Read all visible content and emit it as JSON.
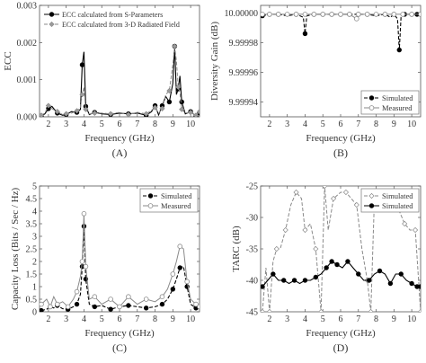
{
  "panels": [
    {
      "id": "A",
      "label": "(A)",
      "xlabel": "Frequency (GHz)",
      "ylabel": "ECC"
    },
    {
      "id": "B",
      "label": "(B)",
      "xlabel": "Frequency (GHz)",
      "ylabel": "Diversity Gain (dB)"
    },
    {
      "id": "C",
      "label": "(C)",
      "xlabel": "Frequency (GHz)",
      "ylabel": "Capacity Loss (Bits / Sec / Hz)"
    },
    {
      "id": "D",
      "label": "(D)",
      "xlabel": "Frequency (GHz)",
      "ylabel": "TARC (dB)"
    }
  ],
  "chart_data": [
    {
      "id": "A",
      "type": "line",
      "xlabel": "Frequency (GHz)",
      "ylabel": "ECC",
      "xlim": [
        1.5,
        10.5
      ],
      "ylim": [
        0,
        0.003
      ],
      "xticks": [
        2,
        3,
        4,
        5,
        6,
        7,
        8,
        9,
        10
      ],
      "yticks": [
        0,
        0.001,
        0.002,
        0.003
      ],
      "ytick_labels": [
        "0.000",
        "0.001",
        "0.002",
        "0.003"
      ],
      "legend": "top-left",
      "series": [
        {
          "name": "ECC  calculated from S-Parameters",
          "style": "solid",
          "marker": "circle-filled",
          "color": "#000000",
          "x": [
            1.6,
            1.8,
            2.0,
            2.2,
            2.5,
            2.8,
            3.0,
            3.3,
            3.6,
            3.8,
            3.9,
            4.0,
            4.1,
            4.3,
            4.6,
            5.0,
            5.5,
            6.0,
            6.5,
            7.0,
            7.5,
            7.8,
            8.0,
            8.2,
            8.4,
            8.6,
            8.8,
            9.0,
            9.1,
            9.2,
            9.3,
            9.4,
            9.5,
            9.7,
            10.0,
            10.3,
            10.5
          ],
          "y": [
            2e-05,
            8e-05,
            0.00022,
            0.00028,
            0.0001,
            4e-05,
            6e-05,
            0.00014,
            0.00012,
            0.0002,
            0.0014,
            0.00175,
            0.00028,
            6e-05,
            0.00012,
            8e-05,
            6e-05,
            0.0001,
            8e-05,
            0.0001,
            4e-05,
            0.00014,
            0.0003,
            5e-05,
            0.0003,
            0.00055,
            0.0004,
            0.0009,
            0.0019,
            0.0006,
            0.00075,
            0.0011,
            0.0004,
            8e-05,
            0.00014,
            2e-05,
            0.0001
          ]
        },
        {
          "name": "ECC  calculated from 3-D Radiated Field",
          "style": "dashed",
          "marker": "diamond-gray",
          "color": "#8a8a8a",
          "x": [
            1.6,
            1.8,
            2.0,
            2.2,
            2.5,
            2.8,
            3.0,
            3.3,
            3.6,
            3.8,
            3.9,
            4.0,
            4.1,
            4.3,
            4.6,
            5.0,
            5.5,
            6.0,
            6.5,
            7.0,
            7.5,
            7.8,
            8.0,
            8.2,
            8.4,
            8.6,
            8.8,
            9.0,
            9.1,
            9.2,
            9.3,
            9.4,
            9.5,
            9.7,
            10.0,
            10.3,
            10.5
          ],
          "y": [
            4e-05,
            0.0001,
            0.0003,
            0.00022,
            0.00014,
            6e-05,
            8e-05,
            0.0001,
            0.00016,
            0.00026,
            0.0006,
            0.0008,
            0.0002,
            8e-05,
            0.0001,
            0.0001,
            8e-05,
            0.00012,
            6e-05,
            0.00012,
            8e-05,
            0.00018,
            0.00025,
            0.0001,
            0.00022,
            0.0006,
            0.0007,
            0.0014,
            0.0019,
            0.0015,
            0.0008,
            0.00065,
            0.0002,
            0.0001,
            0.00012,
            4e-05,
            0.00014
          ]
        }
      ]
    },
    {
      "id": "B",
      "type": "line",
      "xlabel": "Frequency (GHz)",
      "ylabel": "Diversity Gain (dB)",
      "xlim": [
        1.5,
        10.5
      ],
      "ylim": [
        9.99993,
        10.000005
      ],
      "xticks": [
        2,
        3,
        4,
        5,
        6,
        7,
        8,
        9,
        10
      ],
      "yticks": [
        9.99994,
        9.99996,
        9.99998,
        10.0
      ],
      "ytick_labels": [
        "9.99994",
        "9.99996",
        "9.99998",
        "10.00000"
      ],
      "legend": "bottom-right",
      "series": [
        {
          "name": "Simulated",
          "style": "dashed",
          "marker": "circle-filled",
          "color": "#000000",
          "x": [
            1.6,
            2.0,
            2.5,
            3.0,
            3.5,
            3.9,
            4.0,
            4.1,
            4.5,
            5.0,
            5.5,
            6.0,
            6.5,
            7.0,
            7.5,
            8.0,
            8.5,
            8.8,
            9.0,
            9.2,
            9.3,
            9.4,
            9.6,
            10.0,
            10.3,
            10.5
          ],
          "y": [
            9.999998,
            9.999999,
            9.999999,
            9.999998,
            9.999999,
            9.999997,
            9.999986,
            9.999998,
            9.999999,
            9.999999,
            9.999999,
            9.999999,
            9.999999,
            9.999999,
            9.999999,
            9.999998,
            9.999999,
            9.999997,
            9.999999,
            9.999996,
            9.999975,
            9.999997,
            9.999999,
            9.999999,
            9.999999,
            9.999999
          ]
        },
        {
          "name": "Measured",
          "style": "solid",
          "marker": "circle-open",
          "color": "#8a8a8a",
          "x": [
            1.6,
            2.0,
            2.5,
            3.0,
            3.5,
            4.0,
            4.5,
            5.0,
            5.5,
            6.0,
            6.5,
            6.9,
            7.0,
            7.5,
            8.0,
            8.5,
            9.0,
            9.5,
            10.0,
            10.5
          ],
          "y": [
            9.999999,
            9.999999,
            9.999999,
            9.999999,
            9.999999,
            9.999999,
            9.999999,
            9.999999,
            9.999999,
            9.999999,
            9.999999,
            9.999996,
            9.999999,
            9.999999,
            9.999999,
            9.999999,
            9.999999,
            9.999999,
            9.999999,
            9.999999
          ]
        }
      ]
    },
    {
      "id": "C",
      "type": "line",
      "xlabel": "Frequency (GHz)",
      "ylabel": "Capacity Loss (Bits / Sec / Hz)",
      "xlim": [
        1.5,
        10.5
      ],
      "ylim": [
        0,
        5
      ],
      "xticks": [
        2,
        3,
        4,
        5,
        6,
        7,
        8,
        9,
        10
      ],
      "yticks": [
        0,
        0.5,
        1,
        1.5,
        2,
        2.5,
        3,
        3.5,
        4,
        4.5,
        5
      ],
      "ytick_labels": [
        "0",
        "0.5",
        "1",
        "1.5",
        "2",
        "2.5",
        "3",
        "3.5",
        "4",
        "4.5",
        "5"
      ],
      "legend": "top-right",
      "series": [
        {
          "name": "Simulated",
          "style": "dashed",
          "marker": "circle-filled",
          "color": "#000000",
          "x": [
            1.6,
            1.9,
            2.1,
            2.3,
            2.5,
            2.8,
            3.1,
            3.4,
            3.6,
            3.8,
            3.9,
            4.0,
            4.1,
            4.3,
            4.6,
            5.0,
            5.5,
            6.0,
            6.5,
            7.0,
            7.5,
            8.0,
            8.4,
            8.7,
            9.0,
            9.2,
            9.4,
            9.6,
            9.8,
            10.0,
            10.3,
            10.5
          ],
          "y": [
            0.05,
            0.1,
            0.2,
            0.15,
            0.25,
            0.12,
            0.1,
            0.2,
            0.3,
            0.7,
            1.8,
            3.4,
            1.3,
            0.3,
            0.2,
            0.25,
            0.1,
            0.2,
            0.25,
            0.2,
            0.15,
            0.2,
            0.3,
            0.5,
            0.9,
            1.3,
            1.75,
            1.8,
            1.0,
            0.3,
            0.15,
            0.1
          ]
        },
        {
          "name": "Measured",
          "style": "solid",
          "marker": "circle-open",
          "color": "#8a8a8a",
          "x": [
            1.6,
            1.9,
            2.1,
            2.3,
            2.5,
            2.8,
            3.1,
            3.4,
            3.6,
            3.8,
            3.9,
            4.0,
            4.1,
            4.3,
            4.6,
            5.0,
            5.5,
            6.0,
            6.5,
            7.0,
            7.5,
            8.0,
            8.4,
            8.7,
            9.0,
            9.2,
            9.4,
            9.6,
            9.8,
            10.0,
            10.3,
            10.5
          ],
          "y": [
            0.3,
            0.5,
            0.2,
            0.6,
            0.3,
            0.4,
            0.2,
            0.5,
            0.8,
            1.4,
            2.0,
            3.9,
            1.8,
            0.5,
            0.6,
            0.3,
            0.5,
            0.2,
            0.6,
            0.3,
            0.5,
            0.4,
            0.6,
            0.9,
            1.5,
            2.0,
            2.6,
            2.5,
            1.2,
            0.5,
            0.3,
            0.2
          ]
        }
      ]
    },
    {
      "id": "D",
      "type": "line",
      "xlabel": "Frequency (GHz)",
      "ylabel": "TARC (dB)",
      "xlim": [
        1.5,
        10.5
      ],
      "ylim": [
        -45,
        -25
      ],
      "xticks": [
        2,
        3,
        4,
        5,
        6,
        7,
        8,
        9,
        10
      ],
      "yticks": [
        -45,
        -40,
        -35,
        -30,
        -25
      ],
      "ytick_labels": [
        "-45",
        "-40",
        "-35",
        "-30",
        "-25"
      ],
      "legend": "top-right",
      "series": [
        {
          "name": "Simulated",
          "style": "dashed",
          "marker": "diamond-open",
          "color": "#8a8a8a",
          "x": [
            1.6,
            1.8,
            2.0,
            2.2,
            2.4,
            2.6,
            2.9,
            3.2,
            3.5,
            3.8,
            4.0,
            4.3,
            4.6,
            4.9,
            5.1,
            5.3,
            5.6,
            6.0,
            6.3,
            6.6,
            6.9,
            7.2,
            7.5,
            7.7,
            7.9,
            8.1,
            8.4,
            8.7,
            9.0,
            9.3,
            9.6,
            9.9,
            10.2,
            10.5
          ],
          "y": [
            -45,
            -38,
            -45,
            -37,
            -35,
            -35,
            -32,
            -28,
            -26,
            -27,
            -32,
            -31,
            -35,
            -45,
            -25,
            -32,
            -27,
            -26,
            -26,
            -27,
            -28,
            -35,
            -40,
            -45,
            -27,
            -27,
            -28,
            -29,
            -28,
            -29,
            -31,
            -32,
            -32,
            -45
          ]
        },
        {
          "name": "Simulated",
          "style": "solid",
          "marker": "circle-filled",
          "color": "#000000",
          "x": [
            1.6,
            1.9,
            2.2,
            2.5,
            2.8,
            3.1,
            3.4,
            3.7,
            4.0,
            4.3,
            4.6,
            4.9,
            5.2,
            5.5,
            5.8,
            6.1,
            6.4,
            6.7,
            7.0,
            7.3,
            7.6,
            7.9,
            8.2,
            8.5,
            8.8,
            9.1,
            9.4,
            9.7,
            10.0,
            10.3,
            10.5
          ],
          "y": [
            -41,
            -40,
            -39,
            -40,
            -40,
            -40.5,
            -40,
            -40.5,
            -40,
            -40,
            -39.5,
            -39,
            -38,
            -37,
            -37.5,
            -38,
            -37,
            -38,
            -39,
            -40,
            -40,
            -39,
            -38.5,
            -39,
            -40.5,
            -39,
            -39,
            -40,
            -40.5,
            -41,
            -41
          ]
        }
      ]
    }
  ]
}
